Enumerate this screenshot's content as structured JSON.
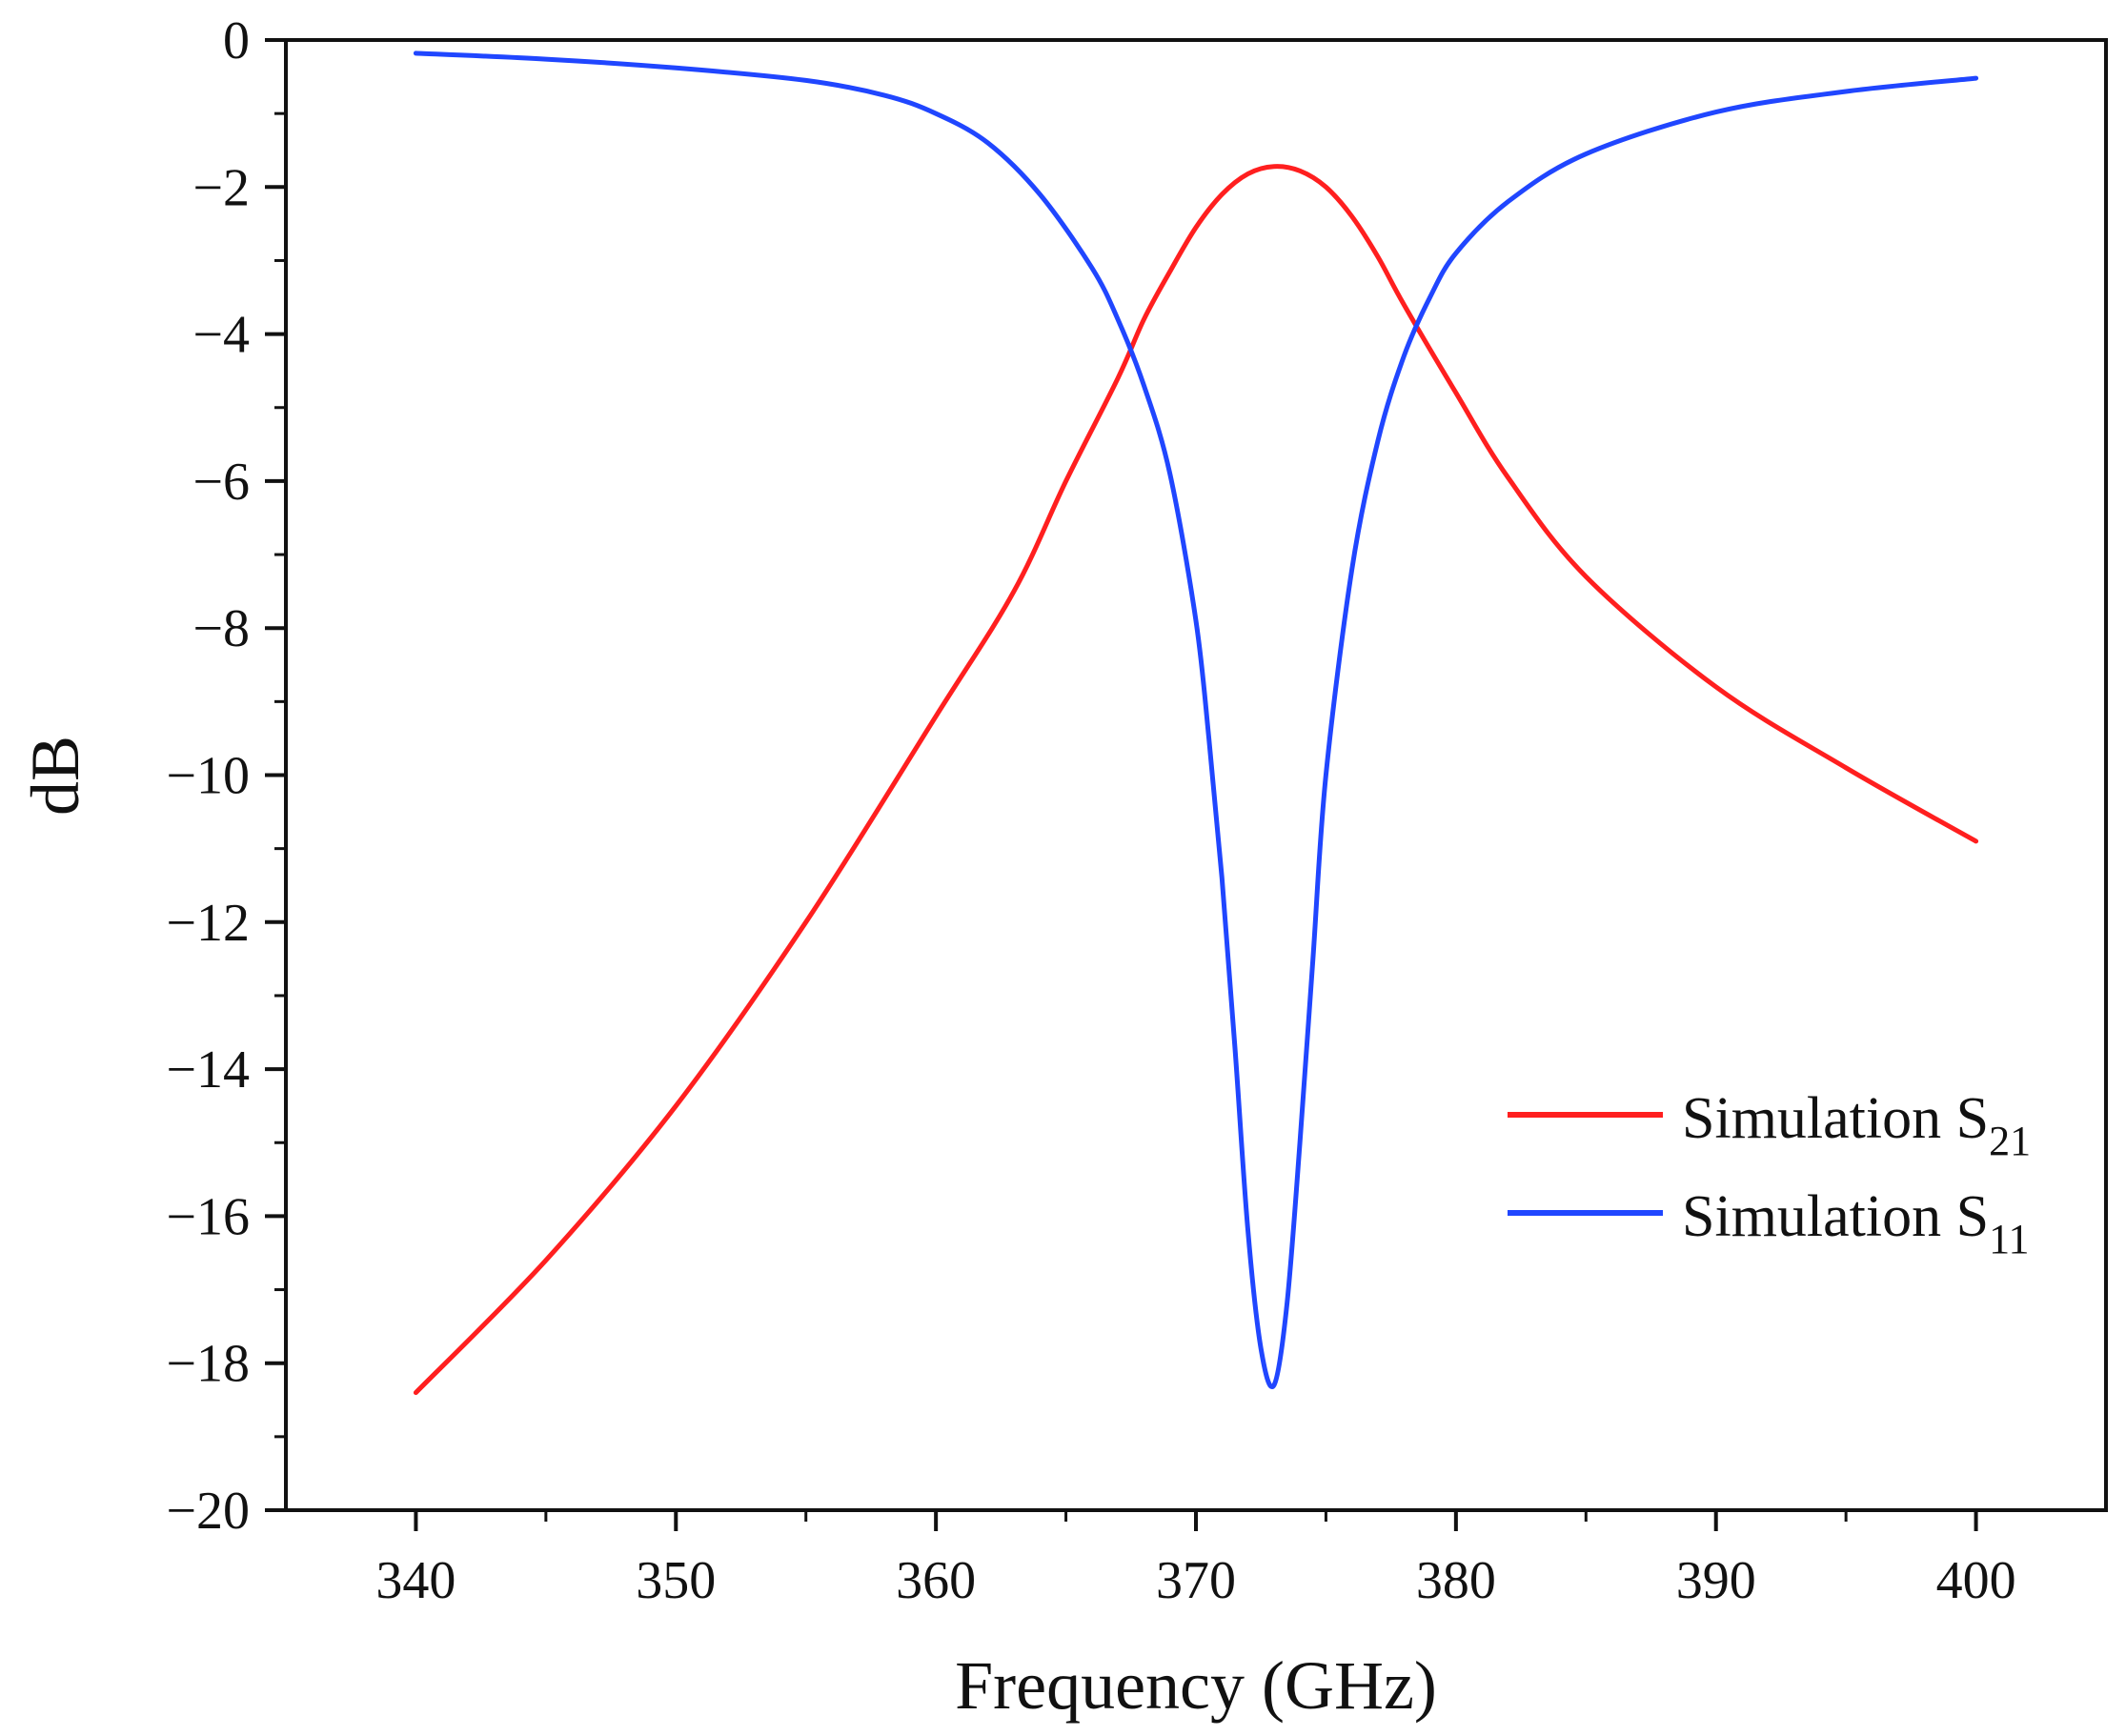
{
  "chart_data": {
    "type": "line",
    "title": "",
    "xlabel": "Frequency (GHz)",
    "ylabel": "dB",
    "xlim": [
      335,
      405
    ],
    "ylim": [
      -20,
      0
    ],
    "xticks": [
      340,
      350,
      360,
      370,
      380,
      390,
      400
    ],
    "xtick_labels": [
      "340",
      "350",
      "360",
      "370",
      "380",
      "390",
      "400"
    ],
    "yticks": [
      0,
      -2,
      -4,
      -6,
      -8,
      -10,
      -12,
      -14,
      -16,
      -18,
      -20
    ],
    "ytick_labels": [
      "0",
      "−2",
      "−4",
      "−6",
      "−8",
      "−10",
      "−12",
      "−14",
      "−16",
      "−18",
      "−20"
    ],
    "grid": false,
    "legend_position": "bottom-right",
    "series": [
      {
        "name": "Simulation S21",
        "legend_base": "Simulation S",
        "legend_sub": "21",
        "color": "#ff1f1f",
        "x": [
          340,
          345,
          350,
          355,
          360,
          363,
          365,
          367,
          368,
          369,
          370,
          371,
          372,
          373,
          374,
          375,
          376,
          377,
          378,
          380,
          382,
          385,
          390,
          395,
          400
        ],
        "values": [
          -18.4,
          -16.6,
          -14.5,
          -12.0,
          -9.2,
          -7.5,
          -6.0,
          -4.6,
          -3.8,
          -3.15,
          -2.55,
          -2.1,
          -1.82,
          -1.72,
          -1.78,
          -2.0,
          -2.4,
          -2.95,
          -3.6,
          -4.8,
          -5.95,
          -7.3,
          -8.8,
          -9.9,
          -10.9
        ]
      },
      {
        "name": "Simulation S11",
        "legend_base": "Simulation S",
        "legend_sub": "11",
        "color": "#2046ff",
        "x": [
          340,
          345,
          350,
          355,
          358,
          360,
          362,
          364,
          366,
          367,
          368,
          369,
          370,
          370.5,
          371,
          371.5,
          372,
          372.5,
          373,
          373.5,
          374,
          374.5,
          375,
          376,
          377,
          378,
          379,
          380,
          382,
          385,
          390,
          395,
          400
        ],
        "values": [
          -0.18,
          -0.26,
          -0.38,
          -0.55,
          -0.75,
          -1.0,
          -1.4,
          -2.1,
          -3.1,
          -3.8,
          -4.7,
          -5.9,
          -7.9,
          -9.5,
          -11.4,
          -13.7,
          -16.2,
          -17.8,
          -18.3,
          -17.2,
          -15.0,
          -12.5,
          -10.0,
          -7.2,
          -5.45,
          -4.3,
          -3.5,
          -2.9,
          -2.2,
          -1.55,
          -0.98,
          -0.7,
          -0.52
        ]
      }
    ]
  }
}
